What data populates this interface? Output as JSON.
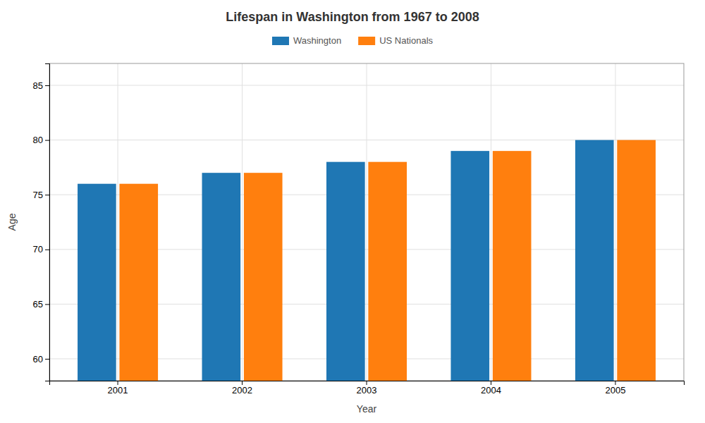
{
  "chart_data": {
    "type": "bar",
    "title": "Lifespan in Washington from 1967 to 2008",
    "xlabel": "Year",
    "ylabel": "Age",
    "categories": [
      "2001",
      "2002",
      "2003",
      "2004",
      "2005"
    ],
    "series": [
      {
        "name": "Washington",
        "values": [
          76.0,
          77.0,
          78.0,
          79.0,
          80.0
        ]
      },
      {
        "name": "US Nationals",
        "values": [
          76.0,
          77.0,
          78.0,
          79.0,
          80.0
        ]
      }
    ],
    "ylim": [
      58,
      87
    ],
    "yticks": [
      60,
      65,
      70,
      75,
      80,
      85
    ],
    "grid": true,
    "legend": "top"
  }
}
